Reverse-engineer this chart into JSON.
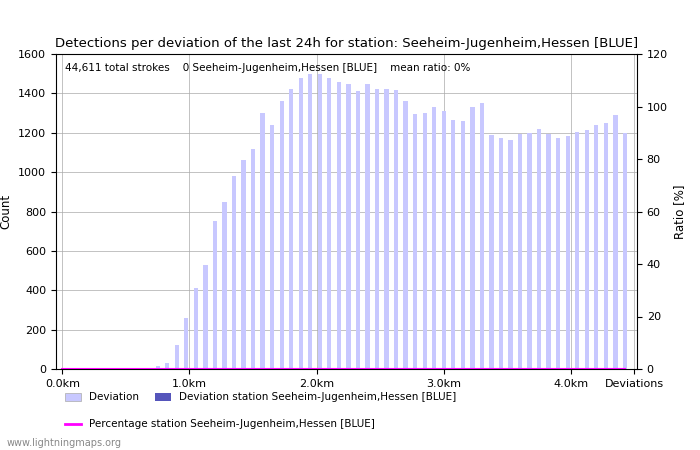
{
  "title": "Detections per deviation of the last 24h for station: Seeheim-Jugenheim,Hessen [BLUE]",
  "subtitle": "44,611 total strokes    0 Seeheim-Jugenheim,Hessen [BLUE]    mean ratio: 0%",
  "ylabel_left": "Count",
  "ylabel_right": "Ratio [%]",
  "x_tick_labels": [
    "0.0km",
    "1.0km",
    "2.0km",
    "3.0km",
    "4.0km",
    "Deviations"
  ],
  "x_tick_positions": [
    0.0,
    1.0,
    2.0,
    3.0,
    4.0,
    4.5
  ],
  "ylim_left": [
    0,
    1600
  ],
  "ylim_right": [
    0,
    120
  ],
  "yticks_left": [
    0,
    200,
    400,
    600,
    800,
    1000,
    1200,
    1400,
    1600
  ],
  "yticks_right": [
    0,
    20,
    40,
    60,
    80,
    100,
    120
  ],
  "bar_color_light": "#C8C8FF",
  "bar_color_dark": "#5555BB",
  "line_color": "#FF00FF",
  "background_color": "#FFFFFF",
  "watermark": "www.lightningmaps.org",
  "legend_entries": [
    "Deviation",
    "Deviation station Seeheim-Jugenheim,Hessen [BLUE]",
    "Percentage station Seeheim-Jugenheim,Hessen [BLUE]"
  ],
  "bar_values": [
    0,
    0,
    0,
    0,
    0,
    0,
    0,
    0,
    0,
    5,
    15,
    30,
    120,
    260,
    410,
    530,
    750,
    850,
    980,
    1060,
    1115,
    1300,
    1240,
    1360,
    1420,
    1480,
    1500,
    1500,
    1480,
    1460,
    1450,
    1410,
    1450,
    1420,
    1420,
    1415,
    1360,
    1295,
    1300,
    1330,
    1310,
    1265,
    1260,
    1330,
    1350,
    1190,
    1175,
    1165,
    1195,
    1200,
    1220,
    1195,
    1175,
    1185,
    1205,
    1215,
    1240,
    1250,
    1290,
    1200
  ],
  "station_bar_values": [
    0,
    0,
    0,
    0,
    0,
    0,
    0,
    0,
    0,
    0,
    0,
    0,
    0,
    0,
    0,
    0,
    0,
    0,
    0,
    0,
    0,
    0,
    0,
    0,
    0,
    0,
    0,
    0,
    0,
    0,
    0,
    0,
    0,
    0,
    0,
    0,
    0,
    0,
    0,
    0,
    0,
    0,
    0,
    0,
    0,
    0,
    0,
    0,
    0,
    0,
    0,
    0,
    0,
    0,
    0,
    0,
    0,
    0,
    0,
    0
  ],
  "ratio_values": [
    0,
    0,
    0,
    0,
    0,
    0,
    0,
    0,
    0,
    0,
    0,
    0,
    0,
    0,
    0,
    0,
    0,
    0,
    0,
    0,
    0,
    0,
    0,
    0,
    0,
    0,
    0,
    0,
    0,
    0,
    0,
    0,
    0,
    0,
    0,
    0,
    0,
    0,
    0,
    0,
    0,
    0,
    0,
    0,
    0,
    0,
    0,
    0,
    0,
    0,
    0,
    0,
    0,
    0,
    0,
    0,
    0,
    0,
    0,
    0
  ],
  "n_bars": 60,
  "x_max_km": 4.5,
  "title_fontsize": 9.5,
  "subtitle_fontsize": 7.5,
  "axis_label_fontsize": 8.5,
  "tick_fontsize": 8,
  "legend_fontsize": 7.5
}
